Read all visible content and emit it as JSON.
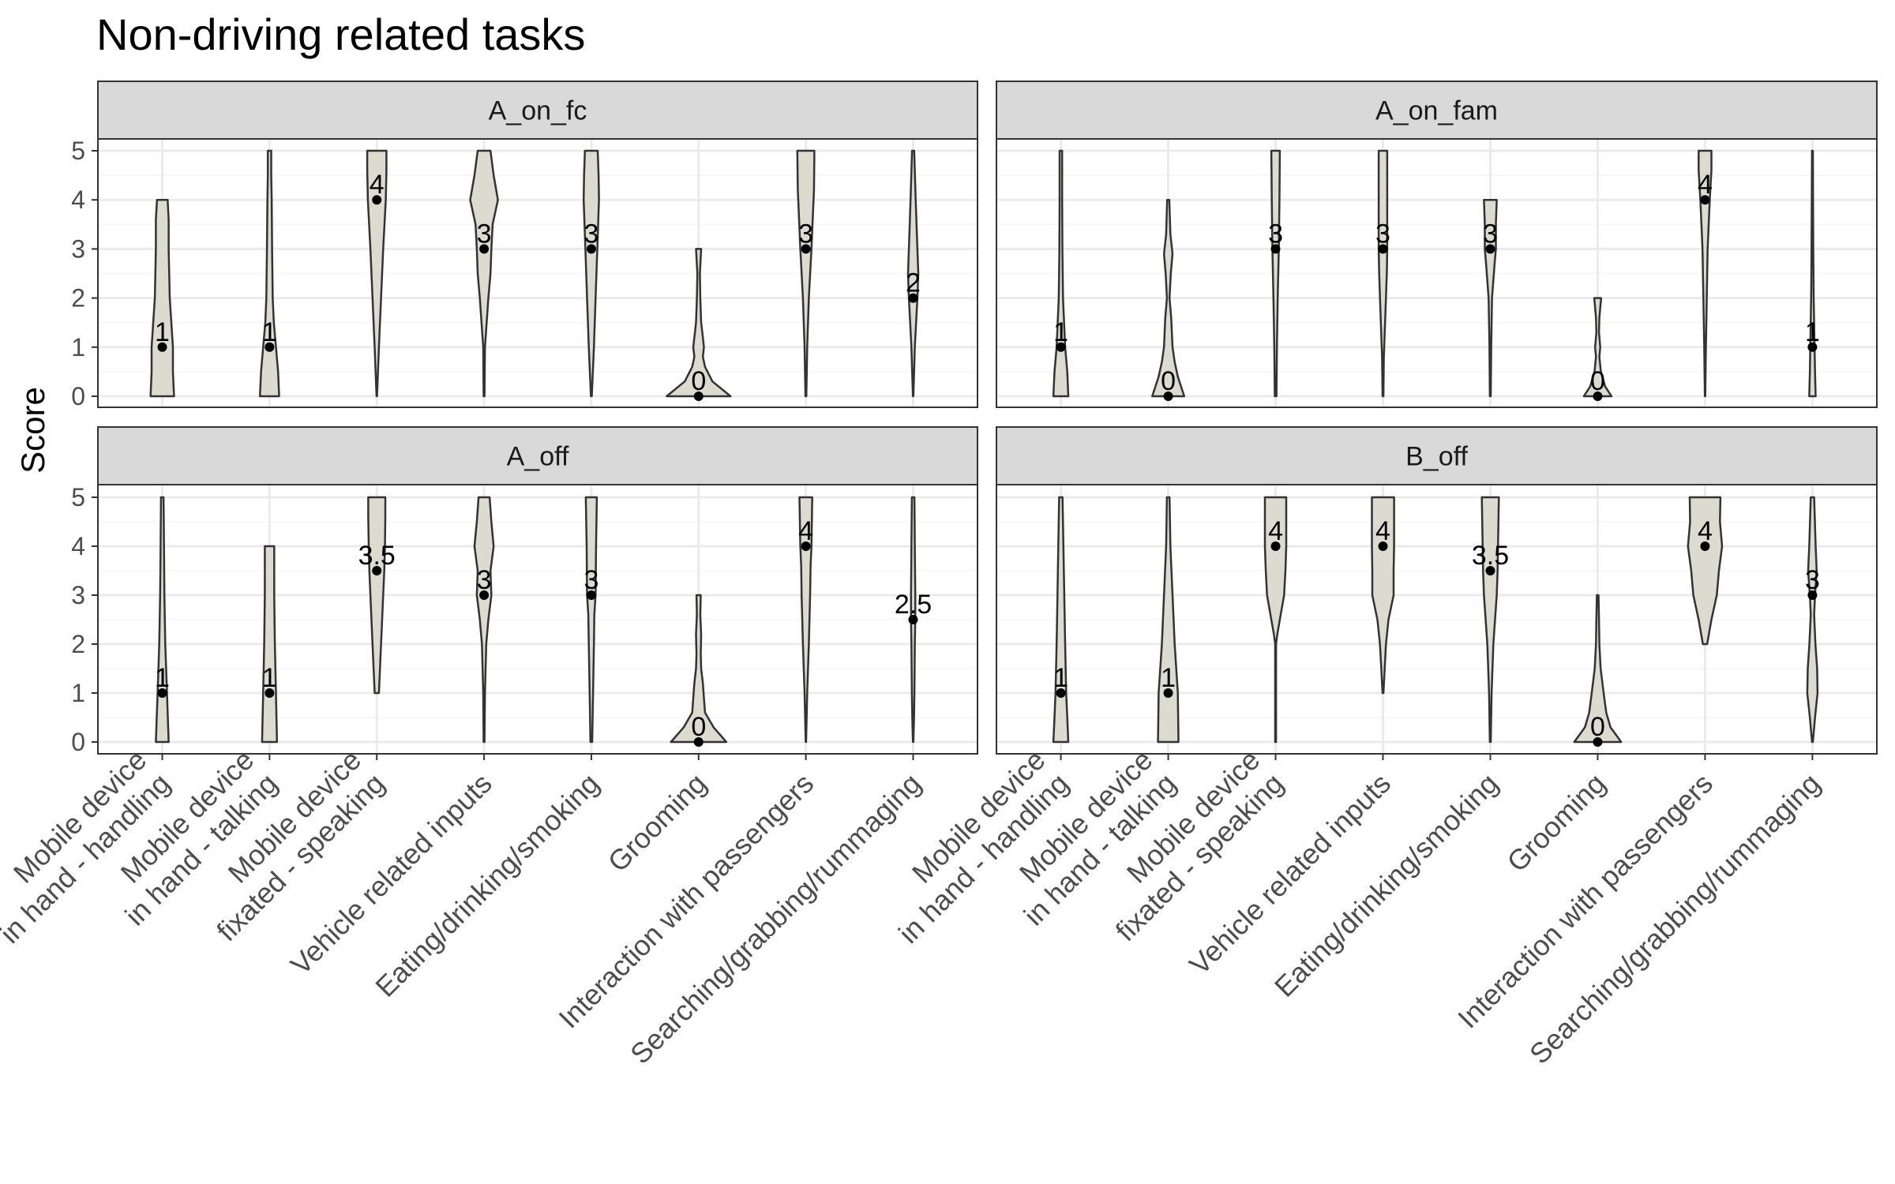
{
  "chart_data": {
    "type": "violin",
    "title": "Non-driving related tasks",
    "ylabel": "Score",
    "xlabel": "",
    "ylim": [
      0,
      5
    ],
    "yticks": [
      0,
      1,
      2,
      3,
      4,
      5
    ],
    "grid": true,
    "fill_color": "#dcdbd0",
    "outline_color": "#333333",
    "categories": [
      "Mobile device\nin hand - handling",
      "Mobile device\nin hand - talking",
      "Mobile device\nfixated - speaking",
      "Vehicle related inputs",
      "Eating/drinking/smoking",
      "Grooming",
      "Interaction with passengers",
      "Searching/grabbing/rummaging"
    ],
    "panels": [
      {
        "name": "A_on_fc",
        "medians": [
          1,
          1,
          4,
          3,
          3,
          0,
          3,
          2
        ],
        "labels": [
          "1",
          "1",
          "4",
          "3",
          "3",
          "0",
          "3",
          "2"
        ],
        "profiles": [
          [
            [
              0,
              0.55
            ],
            [
              0.5,
              0.5
            ],
            [
              1,
              0.5
            ],
            [
              2,
              0.35
            ],
            [
              3,
              0.3
            ],
            [
              3.6,
              0.3
            ],
            [
              4,
              0.25
            ]
          ],
          [
            [
              0,
              0.45
            ],
            [
              0.5,
              0.4
            ],
            [
              1,
              0.3
            ],
            [
              1.5,
              0.2
            ],
            [
              2,
              0.15
            ],
            [
              3,
              0.12
            ],
            [
              4,
              0.1
            ],
            [
              4.5,
              0.08
            ],
            [
              5,
              0.08
            ]
          ],
          [
            [
              0,
              0.01
            ],
            [
              1,
              0.1
            ],
            [
              2,
              0.2
            ],
            [
              3,
              0.3
            ],
            [
              4,
              0.42
            ],
            [
              4.6,
              0.45
            ],
            [
              5,
              0.45
            ]
          ],
          [
            [
              0,
              0.02
            ],
            [
              1,
              0.04
            ],
            [
              2,
              0.2
            ],
            [
              2.5,
              0.3
            ],
            [
              3,
              0.34
            ],
            [
              3.5,
              0.4
            ],
            [
              4,
              0.65
            ],
            [
              4.5,
              0.45
            ],
            [
              5,
              0.3
            ]
          ],
          [
            [
              0,
              0.02
            ],
            [
              1,
              0.12
            ],
            [
              2,
              0.2
            ],
            [
              3,
              0.28
            ],
            [
              4,
              0.36
            ],
            [
              4.5,
              0.34
            ],
            [
              5,
              0.3
            ]
          ],
          [
            [
              0,
              1.5
            ],
            [
              0.3,
              0.65
            ],
            [
              0.6,
              0.3
            ],
            [
              0.8,
              0.2
            ],
            [
              1,
              0.25
            ],
            [
              1.2,
              0.2
            ],
            [
              1.5,
              0.12
            ],
            [
              2,
              0.08
            ],
            [
              2.5,
              0.06
            ],
            [
              3,
              0.12
            ]
          ],
          [
            [
              0,
              0.02
            ],
            [
              1,
              0.06
            ],
            [
              2,
              0.14
            ],
            [
              3,
              0.26
            ],
            [
              3.8,
              0.34
            ],
            [
              4.2,
              0.38
            ],
            [
              5,
              0.4
            ]
          ],
          [
            [
              0,
              0.01
            ],
            [
              1,
              0.08
            ],
            [
              2,
              0.2
            ],
            [
              2.5,
              0.24
            ],
            [
              3,
              0.2
            ],
            [
              4,
              0.12
            ],
            [
              5,
              0.05
            ]
          ]
        ]
      },
      {
        "name": "A_on_fam",
        "medians": [
          1,
          0,
          3,
          3,
          3,
          0,
          4,
          1
        ],
        "labels": [
          "1",
          "0",
          "3",
          "3",
          "3",
          "0",
          "4",
          "1"
        ],
        "profiles": [
          [
            [
              0,
              0.35
            ],
            [
              0.5,
              0.3
            ],
            [
              1,
              0.2
            ],
            [
              2,
              0.1
            ],
            [
              3,
              0.07
            ],
            [
              4,
              0.06
            ],
            [
              5,
              0.06
            ]
          ],
          [
            [
              0,
              0.75
            ],
            [
              0.4,
              0.45
            ],
            [
              0.7,
              0.3
            ],
            [
              1,
              0.2
            ],
            [
              1.6,
              0.14
            ],
            [
              2,
              0.06
            ],
            [
              2.5,
              0.12
            ],
            [
              2.9,
              0.2
            ],
            [
              3.3,
              0.1
            ],
            [
              4,
              0.05
            ]
          ],
          [
            [
              0,
              0.04
            ],
            [
              1,
              0.06
            ],
            [
              2,
              0.1
            ],
            [
              3,
              0.15
            ],
            [
              4,
              0.18
            ],
            [
              5,
              0.2
            ]
          ],
          [
            [
              0,
              0.02
            ],
            [
              0.8,
              0.04
            ],
            [
              1.5,
              0.1
            ],
            [
              2.5,
              0.18
            ],
            [
              3,
              0.2
            ],
            [
              4,
              0.2
            ],
            [
              5,
              0.2
            ]
          ],
          [
            [
              0,
              0.02
            ],
            [
              1,
              0.04
            ],
            [
              2,
              0.08
            ],
            [
              2.7,
              0.2
            ],
            [
              3,
              0.26
            ],
            [
              3.5,
              0.26
            ],
            [
              4,
              0.3
            ]
          ],
          [
            [
              0,
              0.65
            ],
            [
              0.2,
              0.35
            ],
            [
              0.5,
              0.15
            ],
            [
              0.8,
              0.08
            ],
            [
              1,
              0.12
            ],
            [
              1.3,
              0.06
            ],
            [
              1.6,
              0.08
            ],
            [
              2,
              0.16
            ]
          ],
          [
            [
              0,
              0.01
            ],
            [
              1,
              0.04
            ],
            [
              2,
              0.08
            ],
            [
              3,
              0.12
            ],
            [
              4,
              0.22
            ],
            [
              4.6,
              0.3
            ],
            [
              5,
              0.3
            ]
          ],
          [
            [
              0,
              0.15
            ],
            [
              0.5,
              0.12
            ],
            [
              1,
              0.1
            ],
            [
              2,
              0.06
            ],
            [
              3,
              0.04
            ],
            [
              4,
              0.03
            ],
            [
              5,
              0.02
            ]
          ]
        ]
      },
      {
        "name": "A_off",
        "medians": [
          1,
          1,
          3.5,
          3,
          3,
          0,
          4,
          2.5
        ],
        "labels": [
          "1",
          "1",
          "3.5",
          "3",
          "3",
          "0",
          "4",
          "2.5"
        ],
        "profiles": [
          [
            [
              0,
              0.3
            ],
            [
              1,
              0.22
            ],
            [
              2,
              0.14
            ],
            [
              3,
              0.1
            ],
            [
              4,
              0.08
            ],
            [
              5,
              0.06
            ]
          ],
          [
            [
              0,
              0.35
            ],
            [
              1,
              0.3
            ],
            [
              2,
              0.25
            ],
            [
              3,
              0.22
            ],
            [
              4,
              0.22
            ]
          ],
          [
            [
              1,
              0.1
            ],
            [
              2,
              0.2
            ],
            [
              3,
              0.3
            ],
            [
              3.5,
              0.35
            ],
            [
              4,
              0.38
            ],
            [
              4.6,
              0.4
            ],
            [
              5,
              0.4
            ]
          ],
          [
            [
              0,
              0.02
            ],
            [
              1,
              0.04
            ],
            [
              2,
              0.1
            ],
            [
              2.5,
              0.2
            ],
            [
              3,
              0.34
            ],
            [
              3.5,
              0.3
            ],
            [
              4,
              0.45
            ],
            [
              4.5,
              0.34
            ],
            [
              5,
              0.26
            ]
          ],
          [
            [
              0,
              0.04
            ],
            [
              1,
              0.08
            ],
            [
              2,
              0.12
            ],
            [
              2.6,
              0.14
            ],
            [
              3,
              0.2
            ],
            [
              4,
              0.22
            ],
            [
              5,
              0.26
            ]
          ],
          [
            [
              0,
              1.3
            ],
            [
              0.3,
              0.7
            ],
            [
              0.6,
              0.3
            ],
            [
              0.9,
              0.25
            ],
            [
              1.2,
              0.2
            ],
            [
              1.5,
              0.12
            ],
            [
              1.8,
              0.1
            ],
            [
              2.2,
              0.12
            ],
            [
              2.6,
              0.08
            ],
            [
              3,
              0.1
            ]
          ],
          [
            [
              0,
              0.01
            ],
            [
              1,
              0.06
            ],
            [
              2,
              0.14
            ],
            [
              3,
              0.2
            ],
            [
              3.6,
              0.22
            ],
            [
              4,
              0.26
            ],
            [
              5,
              0.3
            ]
          ],
          [
            [
              0,
              0.01
            ],
            [
              0.5,
              0.04
            ],
            [
              1,
              0.06
            ],
            [
              2,
              0.08
            ],
            [
              2.5,
              0.1
            ],
            [
              3,
              0.1
            ],
            [
              4,
              0.08
            ],
            [
              5,
              0.06
            ]
          ]
        ]
      },
      {
        "name": "B_off",
        "medians": [
          1,
          1,
          4,
          4,
          3.5,
          0,
          4,
          3
        ],
        "labels": [
          "1",
          "1",
          "4",
          "4",
          "3.5",
          "0",
          "4",
          "3"
        ],
        "profiles": [
          [
            [
              0,
              0.35
            ],
            [
              0.5,
              0.3
            ],
            [
              1,
              0.25
            ],
            [
              2,
              0.2
            ],
            [
              3,
              0.16
            ],
            [
              4,
              0.12
            ],
            [
              5,
              0.08
            ]
          ],
          [
            [
              0,
              0.48
            ],
            [
              1,
              0.45
            ],
            [
              2,
              0.3
            ],
            [
              3,
              0.2
            ],
            [
              4,
              0.1
            ],
            [
              5,
              0.06
            ]
          ],
          [
            [
              0,
              0.02
            ],
            [
              1,
              0.02
            ],
            [
              2,
              0.02
            ],
            [
              2.2,
              0.08
            ],
            [
              2.5,
              0.2
            ],
            [
              3,
              0.4
            ],
            [
              3.5,
              0.46
            ],
            [
              4,
              0.5
            ],
            [
              5,
              0.5
            ]
          ],
          [
            [
              1,
              0.02
            ],
            [
              1.5,
              0.08
            ],
            [
              2,
              0.14
            ],
            [
              2.5,
              0.26
            ],
            [
              3,
              0.5
            ],
            [
              3.5,
              0.5
            ],
            [
              4,
              0.52
            ],
            [
              5,
              0.52
            ]
          ],
          [
            [
              0,
              0.02
            ],
            [
              1,
              0.06
            ],
            [
              2,
              0.14
            ],
            [
              3,
              0.3
            ],
            [
              3.5,
              0.34
            ],
            [
              4,
              0.36
            ],
            [
              5,
              0.4
            ]
          ],
          [
            [
              0,
              1.1
            ],
            [
              0.3,
              0.6
            ],
            [
              0.6,
              0.4
            ],
            [
              1,
              0.28
            ],
            [
              1.5,
              0.14
            ],
            [
              2,
              0.08
            ],
            [
              2.5,
              0.06
            ],
            [
              3,
              0.04
            ]
          ],
          [
            [
              2,
              0.1
            ],
            [
              2.5,
              0.3
            ],
            [
              3,
              0.55
            ],
            [
              3.5,
              0.65
            ],
            [
              4,
              0.8
            ],
            [
              4.5,
              0.7
            ],
            [
              5,
              0.72
            ]
          ],
          [
            [
              0,
              0.02
            ],
            [
              0.5,
              0.12
            ],
            [
              1,
              0.24
            ],
            [
              1.5,
              0.22
            ],
            [
              2,
              0.14
            ],
            [
              2.6,
              0.08
            ],
            [
              3,
              0.12
            ],
            [
              3.5,
              0.2
            ],
            [
              4,
              0.15
            ],
            [
              5,
              0.08
            ]
          ]
        ]
      }
    ]
  }
}
